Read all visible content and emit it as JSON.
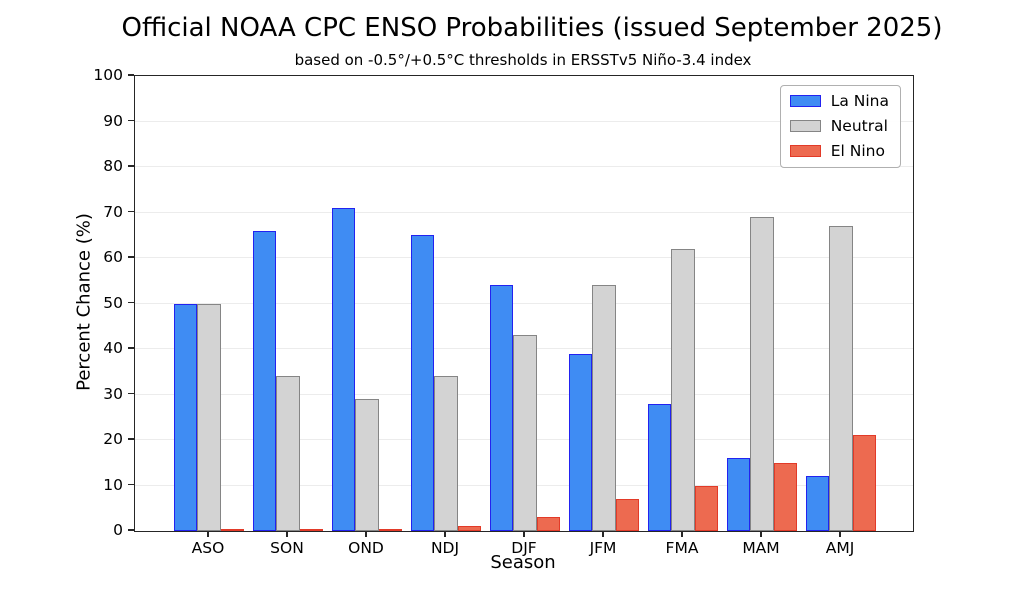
{
  "chart": {
    "title": "Official NOAA CPC ENSO Probabilities (issued September 2025)",
    "subtitle": "based on -0.5°/+0.5°C thresholds in ERSSTv5 Niño-3.4 index",
    "xlabel": "Season",
    "ylabel": "Percent Chance (%)"
  },
  "chart_data": {
    "type": "bar",
    "title": "Official NOAA CPC ENSO Probabilities (issued September 2025)",
    "subtitle": "based on -0.5°/+0.5°C thresholds in ERSSTv5 Niño-3.4 index",
    "xlabel": "Season",
    "ylabel": "Percent Chance (%)",
    "categories": [
      "ASO",
      "SON",
      "OND",
      "NDJ",
      "DJF",
      "JFM",
      "FMA",
      "MAM",
      "AMJ"
    ],
    "series": [
      {
        "name": "La Nina",
        "fill": "#3f8cf3",
        "edge": "#2222f0",
        "values": [
          50,
          66,
          71,
          65,
          54,
          39,
          28,
          16,
          12
        ]
      },
      {
        "name": "Neutral",
        "fill": "#d3d3d3",
        "edge": "#858585",
        "values": [
          50,
          34,
          29,
          34,
          43,
          54,
          62,
          69,
          67
        ]
      },
      {
        "name": "El Nino",
        "fill": "#ed6a50",
        "edge": "#e23a28",
        "values": [
          0,
          0,
          0,
          1,
          3,
          7,
          10,
          15,
          21
        ]
      }
    ],
    "ylim": [
      0,
      100
    ],
    "yticks": [
      0,
      10,
      20,
      30,
      40,
      50,
      60,
      70,
      80,
      90,
      100
    ],
    "grid": true,
    "legend_position": "upper right",
    "colors": {
      "gridline": "#ececec",
      "spine": "#262626",
      "text": "#000000",
      "legend_border": "#b0b0b0"
    }
  }
}
